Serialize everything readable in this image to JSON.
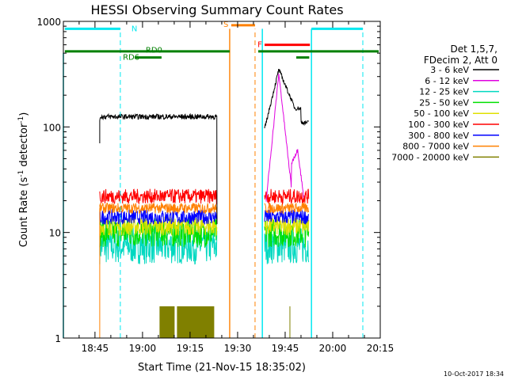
{
  "chart_data": {
    "type": "line",
    "title": "HESSI Observing Summary Count Rates",
    "xlabel": "Start Time (21-Nov-15 18:35:02)",
    "ylabel": "Count Rate (s⁻¹ detector⁻¹)",
    "ylabel_main": "Count Rate (s",
    "ylabel_sup1": "-1",
    "ylabel_mid": " detector",
    "ylabel_sup2": "-1",
    "ylabel_end": ")",
    "yscale": "log",
    "x_range_min": [
      35.03,
      135
    ],
    "ylim": [
      1,
      1000
    ],
    "x_ticks": [
      {
        "min": 45,
        "label": "18:45"
      },
      {
        "min": 60,
        "label": "19:00"
      },
      {
        "min": 75,
        "label": "19:15"
      },
      {
        "min": 90,
        "label": "19:30"
      },
      {
        "min": 105,
        "label": "19:45"
      },
      {
        "min": 120,
        "label": "20:00"
      },
      {
        "min": 135,
        "label": "20:15"
      }
    ],
    "y_ticks": [
      {
        "value": 1,
        "label": "1"
      },
      {
        "value": 10,
        "label": "10"
      },
      {
        "value": 100,
        "label": "100"
      },
      {
        "value": 1000,
        "label": "1000"
      }
    ],
    "legend_header": [
      "Det 1,5,7,",
      "FDecim 2, Att 0"
    ],
    "series": [
      {
        "name": "3 - 6 keV",
        "color": "#000000",
        "level": 125,
        "flare_peak": 350
      },
      {
        "name": "6 - 12 keV",
        "color": "#e000e0",
        "level": null,
        "flare_peak": 320
      },
      {
        "name": "12 - 25 keV",
        "color": "#00d8c0",
        "level": 7.5
      },
      {
        "name": "25 - 50 keV",
        "color": "#00e000",
        "level": 10
      },
      {
        "name": "50 - 100 keV",
        "color": "#e0e000",
        "level": 11.5
      },
      {
        "name": "100 - 300 keV",
        "color": "#ff0000",
        "level": 22
      },
      {
        "name": "300 - 800 keV",
        "color": "#0000ff",
        "level": 14
      },
      {
        "name": "800 - 7000 keV",
        "color": "#ff8000",
        "level": 17
      },
      {
        "name": "7000 - 20000 keV",
        "color": "#808000",
        "level": 1.5
      }
    ],
    "annotations": {
      "N": {
        "label": "N",
        "color": "#00e8f0"
      },
      "S": {
        "label": "S",
        "color": "#ff8000"
      },
      "F": {
        "label": "F",
        "color": "#ff0000"
      },
      "RD0": {
        "label": "RD0",
        "color": "#008000"
      },
      "RD6": {
        "label": "RD6",
        "color": "#008000"
      }
    }
  },
  "footer_date": "10-Oct-2017 18:34"
}
